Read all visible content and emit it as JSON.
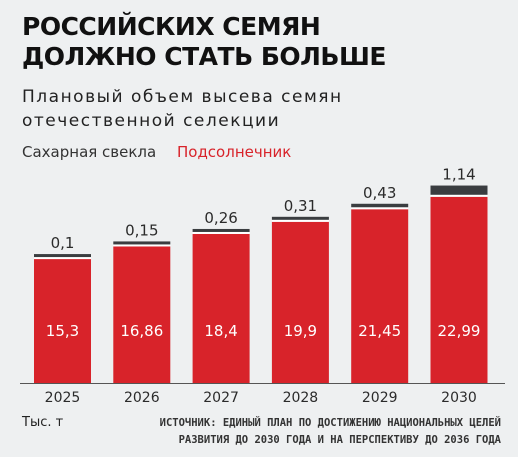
{
  "title": [
    "РОССИЙСКИХ СЕМЯН",
    "ДОЛЖНО СТАТЬ БОЛЬШЕ"
  ],
  "subtitle": [
    "Плановый объем высева семян",
    "отечественной селекции"
  ],
  "legend": {
    "sugar_beet": "Сахарная свекла",
    "sunflower": "Подсолнечник"
  },
  "colors": {
    "sunflower": "#d8232a",
    "sugar_beet": "#3a3d40",
    "background": "#eef0f1"
  },
  "unit": "Тыс. т",
  "source": [
    "ИСТОЧНИК: ЕДИНЫЙ ПЛАН ПО ДОСТИЖЕНИЮ НАЦИОНАЛЬНЫХ ЦЕЛЕЙ",
    "РАЗВИТИЯ ДО 2030 ГОДА И НА ПЕРСПЕКТИВУ ДО 2036 ГОДА"
  ],
  "chart_data": {
    "type": "bar",
    "stacked": true,
    "categories": [
      "2025",
      "2026",
      "2027",
      "2028",
      "2029",
      "2030"
    ],
    "series": [
      {
        "name": "Подсолнечник",
        "values": [
          15.3,
          16.86,
          18.4,
          19.9,
          21.45,
          22.99
        ],
        "labels": [
          "15,3",
          "16,86",
          "18,4",
          "19,9",
          "21,45",
          "22,99"
        ]
      },
      {
        "name": "Сахарная свекла",
        "values": [
          0.1,
          0.15,
          0.26,
          0.31,
          0.43,
          1.14
        ],
        "labels": [
          "0,1",
          "0,15",
          "0,26",
          "0,31",
          "0,43",
          "1,14"
        ]
      }
    ],
    "title": "",
    "xlabel": "",
    "ylabel": "",
    "grid": false
  }
}
